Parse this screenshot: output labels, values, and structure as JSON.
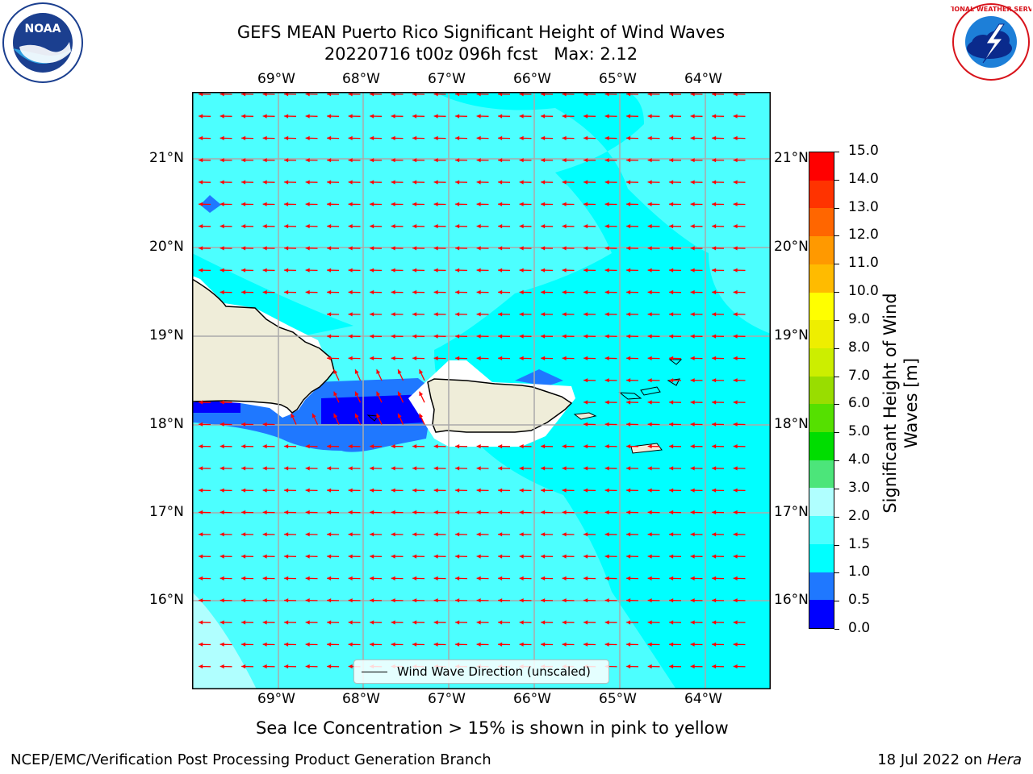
{
  "title": {
    "line1": "GEFS MEAN Puerto Rico Significant Height of Wind Waves",
    "line2": "20220716 t00z 096h fcst   Max: 2.12"
  },
  "map": {
    "lon_labels": [
      "69°W",
      "68°W",
      "67°W",
      "66°W",
      "65°W",
      "64°W"
    ],
    "lat_labels": [
      "21°N",
      "20°N",
      "19°N",
      "18°N",
      "17°N",
      "16°N"
    ],
    "legend_label": "Wind Wave Direction (unscaled)",
    "colors": {
      "land": "#efedd9",
      "coast": "#000000",
      "gridline": "#aaaaaa",
      "arrow": "#ff0000",
      "level_0_0_5": "#0000ff",
      "level_0_5_1": "#1f78ff",
      "level_1_1_5": "#00ffff",
      "level_1_5_2": "#4cffff",
      "level_2_3": "#b0ffff",
      "frame": "#000000"
    }
  },
  "colorbar": {
    "label": "Significant Height of Wind Waves [m]",
    "tick_labels": [
      "0.0",
      "0.5",
      "1.0",
      "1.5",
      "2.0",
      "3.0",
      "4.0",
      "5.0",
      "6.0",
      "7.0",
      "8.0",
      "9.0",
      "10.0",
      "11.0",
      "12.0",
      "13.0",
      "14.0",
      "15.0"
    ],
    "colors": [
      "#0000ff",
      "#1f78ff",
      "#00ffff",
      "#4cffff",
      "#b0ffff",
      "#4ce57a",
      "#00dd00",
      "#55e000",
      "#99dd00",
      "#ccee00",
      "#eeee00",
      "#ffff00",
      "#ffbb00",
      "#ff9900",
      "#ff6600",
      "#ff3300",
      "#ff0000"
    ]
  },
  "caption": "Sea Ice Concentration > 15% is shown in pink to yellow",
  "footer": {
    "left": "NCEP/EMC/Verification Post Processing Product Generation Branch",
    "right_prefix": "18 Jul 2022 on ",
    "right_system": "Hera"
  },
  "logos": {
    "left_icon": "noaa-logo",
    "left_text": "NOAA",
    "right_icon": "nws-logo",
    "right_text": "NATIONAL WEATHER SERVICE"
  }
}
